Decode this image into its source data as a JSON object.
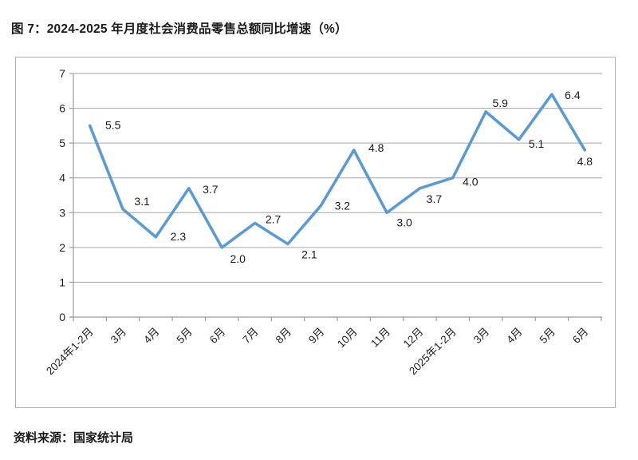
{
  "title": "图 7：2024-2025 年月度社会消费品零售总额同比增速（%）",
  "source": "资料来源：国家统计局",
  "chart_data": {
    "type": "line",
    "title": "图 7：2024-2025 年月度社会消费品零售总额同比增速（%）",
    "categories": [
      "2024年1-2月",
      "3月",
      "4月",
      "5月",
      "6月",
      "7月",
      "8月",
      "9月",
      "10月",
      "11月",
      "12月",
      "2025年1-2月",
      "3月",
      "4月",
      "5月",
      "6月"
    ],
    "values": [
      5.5,
      3.1,
      2.3,
      3.7,
      2.0,
      2.7,
      2.1,
      3.2,
      4.8,
      3.0,
      3.7,
      4.0,
      5.9,
      5.1,
      6.4,
      4.8
    ],
    "xlabel": "",
    "ylabel": "",
    "ylim": [
      0,
      7
    ],
    "ytick_step": 1,
    "yticks": [
      0,
      1,
      2,
      3,
      4,
      5,
      6,
      7
    ],
    "grid": true,
    "legend": "none",
    "data_labels": true,
    "line_color": "#5b9bd5",
    "grid_color": "#a6a6a6",
    "axis_color": "#9b9b9b",
    "tick_label_color": "#1f1f1f",
    "data_label_color": "#1a1a1a"
  }
}
